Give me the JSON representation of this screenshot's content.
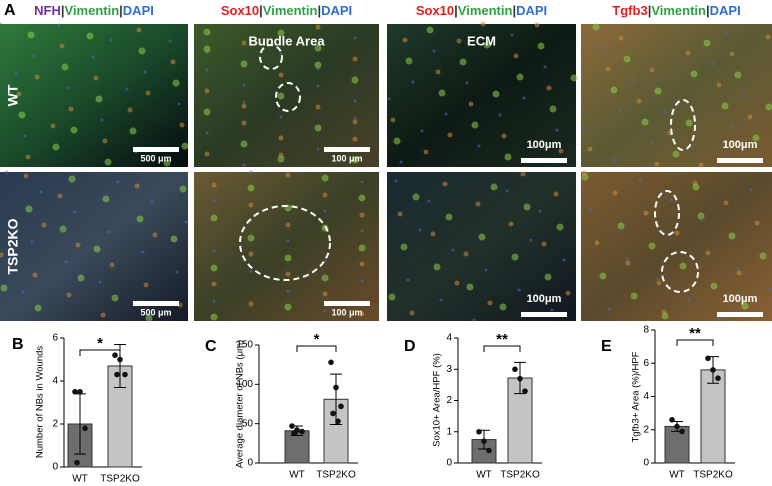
{
  "figure_label": "A",
  "column_headers": [
    [
      {
        "text": "NFH",
        "color": "#7030a0"
      },
      {
        "text": "|",
        "color": "#333333"
      },
      {
        "text": "Vimentin",
        "color": "#2ea043"
      },
      {
        "text": "|",
        "color": "#333333"
      },
      {
        "text": "DAPI",
        "color": "#2f6fd0"
      }
    ],
    [
      {
        "text": "Sox10",
        "color": "#e02020"
      },
      {
        "text": "|",
        "color": "#333333"
      },
      {
        "text": "Vimentin",
        "color": "#2ea043"
      },
      {
        "text": "|",
        "color": "#333333"
      },
      {
        "text": "DAPI",
        "color": "#2f6fd0"
      }
    ],
    [
      {
        "text": "Sox10",
        "color": "#e02020"
      },
      {
        "text": "|",
        "color": "#333333"
      },
      {
        "text": "Vimentin",
        "color": "#2ea043"
      },
      {
        "text": "|",
        "color": "#333333"
      },
      {
        "text": "DAPI",
        "color": "#2f6fd0"
      }
    ],
    [
      {
        "text": "Tgfb3",
        "color": "#e02020"
      },
      {
        "text": "|",
        "color": "#333333"
      },
      {
        "text": "Vimentin",
        "color": "#2ea043"
      },
      {
        "text": "|",
        "color": "#333333"
      },
      {
        "text": "DAPI",
        "color": "#2f6fd0"
      }
    ]
  ],
  "row_labels": [
    "WT",
    "TSP2KO"
  ],
  "panels": [
    [
      {
        "scale_bar": "500 μm"
      },
      {
        "label": "Bundle Area",
        "scale_bar": "100 μm"
      },
      {
        "label": "ECM",
        "scale_bar": "100μm"
      },
      {
        "scale_bar": "100μm"
      }
    ],
    [
      {
        "scale_bar": "500 μm"
      },
      {
        "scale_bar": "100 μm"
      },
      {
        "scale_bar": "100μm"
      },
      {
        "scale_bar": "100μm"
      }
    ]
  ],
  "chart_data": [
    {
      "type": "bar",
      "panel_label": "B",
      "ylabel": "Number of NBs in Wounds",
      "categories": [
        "WT",
        "TSP2KO"
      ],
      "values": [
        2.0,
        4.7
      ],
      "errors": [
        1.4,
        1.0
      ],
      "points": [
        [
          3.5,
          3.5,
          1.8,
          0.2
        ],
        [
          5.2,
          5.0,
          4.3,
          4.3
        ]
      ],
      "colors": [
        "#6e6e6e",
        "#c4c4c4"
      ],
      "ylim": [
        0,
        6
      ],
      "yticks": [
        0,
        2,
        4,
        6
      ],
      "significance": "*"
    },
    {
      "type": "bar",
      "panel_label": "C",
      "ylabel": "Average diameter of NBs (μm)",
      "categories": [
        "WT",
        "TSP2KO"
      ],
      "values": [
        41,
        81
      ],
      "errors": [
        6,
        32
      ],
      "points": [
        [
          47,
          42,
          40,
          38
        ],
        [
          128,
          96,
          72,
          63,
          53
        ]
      ],
      "colors": [
        "#6e6e6e",
        "#c4c4c4"
      ],
      "ylim": [
        0,
        150
      ],
      "yticks": [
        0,
        50,
        100,
        150
      ],
      "significance": "*"
    },
    {
      "type": "bar",
      "panel_label": "D",
      "ylabel": "Sox10+ Area/HPF (%)",
      "categories": [
        "WT",
        "TSP2KO"
      ],
      "values": [
        0.75,
        2.72
      ],
      "errors": [
        0.3,
        0.5
      ],
      "points": [
        [
          1.0,
          0.7,
          0.4
        ],
        [
          3.0,
          2.7,
          2.3
        ]
      ],
      "colors": [
        "#6e6e6e",
        "#c4c4c4"
      ],
      "ylim": [
        0,
        4
      ],
      "yticks": [
        0,
        1,
        2,
        3,
        4
      ],
      "significance": "**"
    },
    {
      "type": "bar",
      "panel_label": "E",
      "ylabel": "Tgfb3+ Area (%)/HPF",
      "categories": [
        "WT",
        "TSP2KO"
      ],
      "values": [
        2.2,
        5.6
      ],
      "errors": [
        0.3,
        0.8
      ],
      "points": [
        [
          2.6,
          2.2,
          1.9
        ],
        [
          6.3,
          5.6,
          5.1
        ]
      ],
      "colors": [
        "#6e6e6e",
        "#c4c4c4"
      ],
      "ylim": [
        0,
        8
      ],
      "yticks": [
        0,
        2,
        4,
        6,
        8
      ],
      "significance": "**"
    }
  ]
}
